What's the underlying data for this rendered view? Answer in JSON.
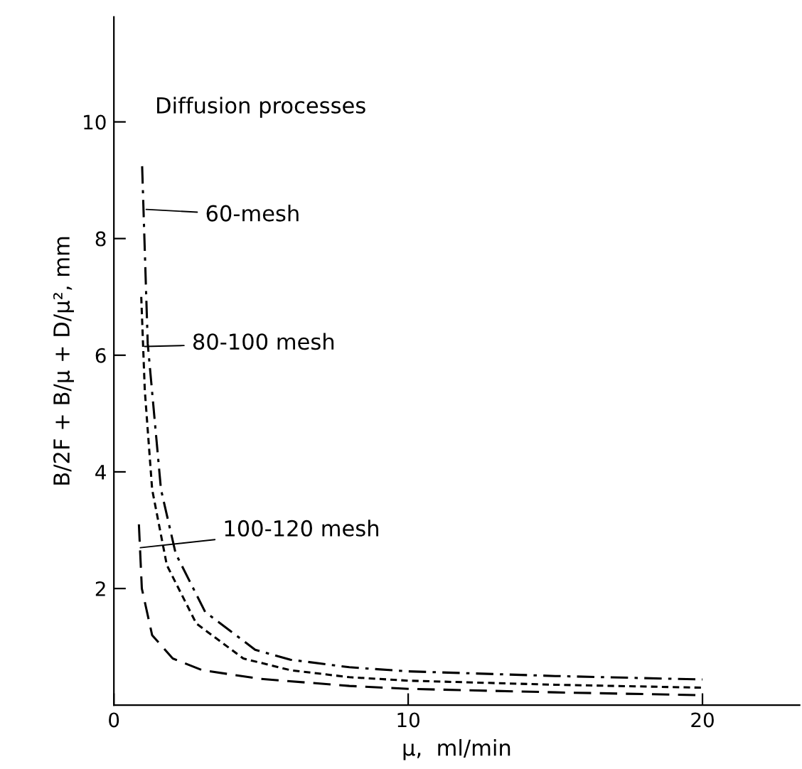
{
  "chart_data": {
    "type": "line",
    "title": "Diffusion processes",
    "xlabel": "μ,  ml/min",
    "ylabel": "B/2F + B/μ + D/μ², mm",
    "xlim": [
      0,
      23.3
    ],
    "ylim": [
      0,
      11.8
    ],
    "xticks": [
      0,
      10,
      20
    ],
    "yticks": [
      2,
      4,
      6,
      8,
      10
    ],
    "grid": false,
    "legend": false,
    "marker": "none",
    "series": [
      {
        "color": "#000000",
        "line_style": "dashdot",
        "x": [
          0.96,
          1.15,
          1.6,
          2.1,
          3.1,
          4.8,
          6,
          8,
          10,
          15,
          20
        ],
        "values": [
          9.24,
          6.2,
          3.7,
          2.6,
          1.6,
          0.95,
          0.78,
          0.65,
          0.58,
          0.5,
          0.44
        ]
      },
      {
        "color": "#000000",
        "line_style": "dashed",
        "x": [
          0.93,
          1.05,
          1.3,
          1.8,
          2.8,
          4.4,
          6,
          8,
          10,
          15,
          20
        ],
        "values": [
          7.0,
          5.4,
          3.7,
          2.4,
          1.4,
          0.8,
          0.6,
          0.48,
          0.42,
          0.35,
          0.3
        ]
      },
      {
        "color": "#000000",
        "line_style": "longdash",
        "x": [
          0.85,
          0.95,
          1.3,
          2.0,
          3.0,
          5.0,
          8,
          10,
          15,
          20
        ],
        "values": [
          3.1,
          2.0,
          1.2,
          0.8,
          0.6,
          0.45,
          0.33,
          0.28,
          0.22,
          0.17
        ]
      }
    ],
    "annotations": [
      {
        "text": "60-mesh",
        "x": 1.1,
        "y": 8.5
      },
      {
        "text": "80-100 mesh",
        "x": 1.05,
        "y": 6.15
      },
      {
        "text": "100-120 mesh",
        "x": 0.9,
        "y": 2.7
      }
    ]
  }
}
